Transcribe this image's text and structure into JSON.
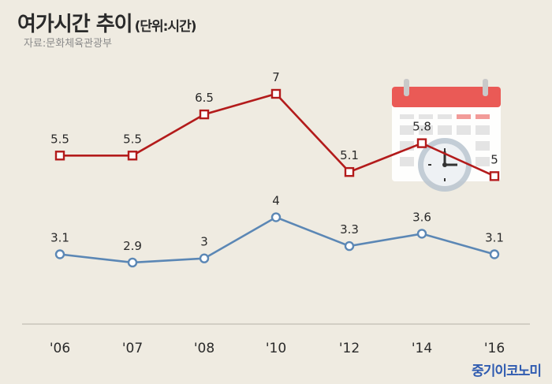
{
  "header": {
    "title": "여가시간 추이",
    "unit": "(단위:시간)",
    "source": "자료:문화체육관광부",
    "brand": "중기이코노미"
  },
  "colors": {
    "background": "#efebe1",
    "series_weekend": "#b31b1b",
    "series_weekday": "#5b87b5"
  },
  "chart_data": {
    "type": "line",
    "categories": [
      "'06",
      "'07",
      "'08",
      "'10",
      "'12",
      "'14",
      "'16"
    ],
    "series": [
      {
        "values": [
          5.5,
          5.5,
          6.5,
          7,
          5.1,
          5.8,
          5
        ],
        "labels": [
          "5.5",
          "5.5",
          "6.5",
          "7",
          "5.1",
          "5.8",
          "5"
        ]
      },
      {
        "values": [
          3.1,
          2.9,
          3,
          4,
          3.3,
          3.6,
          3.1
        ],
        "labels": [
          "3.1",
          "2.9",
          "3",
          "4",
          "3.3",
          "3.6",
          "3.1"
        ]
      }
    ],
    "ylim": [
      1.5,
      7
    ],
    "grid": false,
    "legend": "none",
    "decoration": "calendar-clock-icon"
  }
}
